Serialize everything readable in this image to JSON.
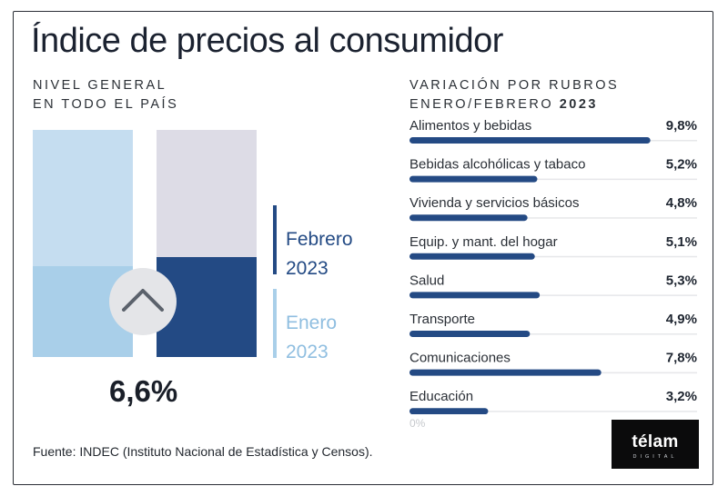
{
  "title": "Índice de precios al consumidor",
  "left_panel": {
    "subtitle_lines": [
      "NIVEL GENERAL",
      "EN TODO EL PAÍS"
    ],
    "value_label": "6,6%",
    "legend": [
      {
        "month": "Febrero",
        "year": "2023",
        "color": "#234a84"
      },
      {
        "month": "Enero",
        "year": "2023",
        "color": "#a9cfe9"
      }
    ],
    "arrow_icon": "chevron-up-icon"
  },
  "right_panel": {
    "subtitle_line1": "VARIACIÓN POR RUBROS",
    "subtitle_line2_prefix": "ENERO/FEBRERO ",
    "subtitle_line2_year": "2023"
  },
  "chart_data": [
    {
      "type": "bar",
      "title": "NIVEL GENERAL EN TODO EL PAÍS",
      "categories": [
        "Enero 2023",
        "Febrero 2023"
      ],
      "values": [
        6.0,
        6.6
      ],
      "value_labels": [
        "",
        "6,6%"
      ],
      "colors": [
        "#a9cfe9",
        "#234a84"
      ],
      "background_colors": [
        "#c5ddf0",
        "#dddce6"
      ],
      "ylim": [
        0,
        15
      ],
      "legend": "right",
      "grid": false
    },
    {
      "type": "bar",
      "orientation": "horizontal",
      "title": "VARIACIÓN POR RUBROS ENERO/FEBRERO 2023",
      "categories": [
        "Alimentos y bebidas",
        "Bebidas alcohólicas y tabaco",
        "Vivienda y servicios básicos",
        "Equip. y mant. del hogar",
        "Salud",
        "Transporte",
        "Comunicaciones",
        "Educación"
      ],
      "values": [
        9.8,
        5.2,
        4.8,
        5.1,
        5.3,
        4.9,
        7.8,
        3.2
      ],
      "value_labels": [
        "9,8%",
        "5,2%",
        "4,8%",
        "5,1%",
        "5,3%",
        "4,9%",
        "7,8%",
        "3,2%"
      ],
      "axis_label": "0%",
      "xlim": [
        0,
        11.7
      ],
      "bar_color": "#244a84",
      "track_color": "#e6e7ea",
      "grid": false
    }
  ],
  "source": "Fuente: INDEC (Instituto Nacional de Estadística y Censos).",
  "logo": {
    "word": "télam",
    "sub": "DIGITAL"
  }
}
